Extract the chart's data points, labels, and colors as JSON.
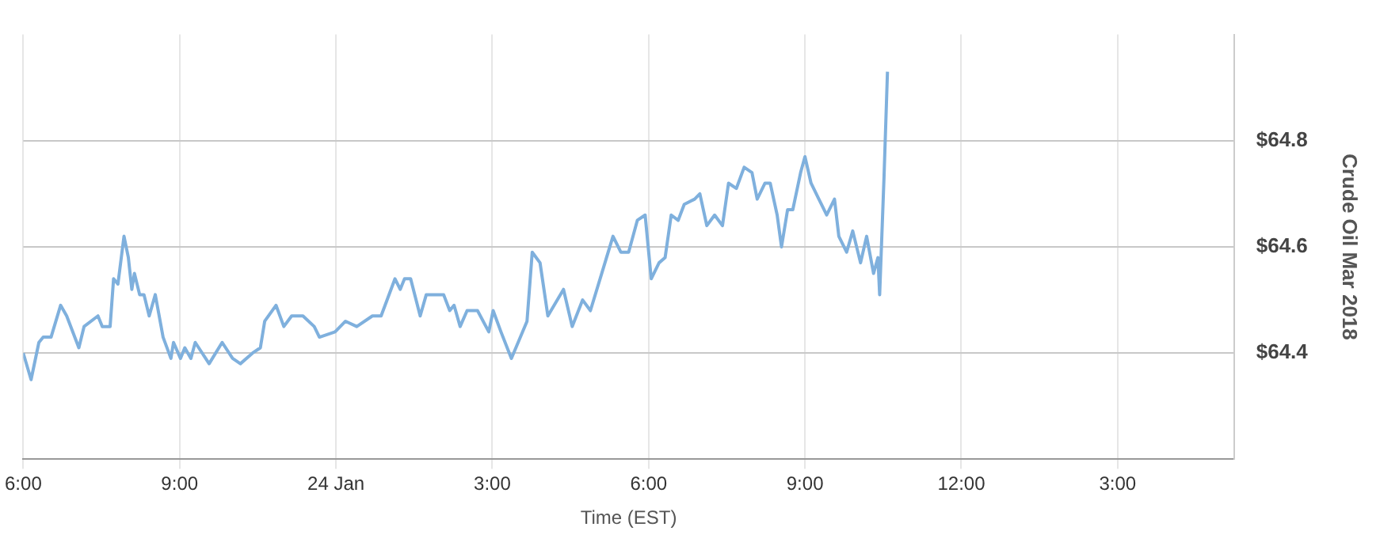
{
  "chart_data": {
    "type": "line",
    "xlabel": "Time (EST)",
    "ylabel": "Crude Oil Mar 2018",
    "xlim": [
      "2018-01-23T18:00",
      "2018-01-24T17:14"
    ],
    "xticks": [
      {
        "value": "2018-01-23T18:00",
        "label": "6:00"
      },
      {
        "value": "2018-01-23T21:00",
        "label": "9:00"
      },
      {
        "value": "2018-01-24T00:00",
        "label": "24 Jan"
      },
      {
        "value": "2018-01-24T03:00",
        "label": "3:00"
      },
      {
        "value": "2018-01-24T06:00",
        "label": "6:00"
      },
      {
        "value": "2018-01-24T09:00",
        "label": "9:00"
      },
      {
        "value": "2018-01-24T12:00",
        "label": "12:00"
      },
      {
        "value": "2018-01-24T15:00",
        "label": "3:00"
      }
    ],
    "ylim": [
      64.2,
      65.0
    ],
    "yticks": [
      {
        "value": 64.4,
        "label": "$64.4"
      },
      {
        "value": 64.6,
        "label": "$64.6"
      },
      {
        "value": 64.8,
        "label": "$64.8"
      }
    ],
    "grid": true,
    "marker": "none",
    "line_style": "solid",
    "series": [
      {
        "color": "#7fb0dd",
        "x": [
          "2018-01-23T18:00",
          "2018-01-23T18:09",
          "2018-01-23T18:18",
          "2018-01-23T18:23",
          "2018-01-23T18:32",
          "2018-01-23T18:43",
          "2018-01-23T18:50",
          "2018-01-23T19:04",
          "2018-01-23T19:10",
          "2018-01-23T19:26",
          "2018-01-23T19:31",
          "2018-01-23T19:40",
          "2018-01-23T19:44",
          "2018-01-23T19:49",
          "2018-01-23T19:56",
          "2018-01-23T20:01",
          "2018-01-23T20:05",
          "2018-01-23T20:08",
          "2018-01-23T20:14",
          "2018-01-23T20:19",
          "2018-01-23T20:25",
          "2018-01-23T20:32",
          "2018-01-23T20:41",
          "2018-01-23T20:50",
          "2018-01-23T20:53",
          "2018-01-23T21:01",
          "2018-01-23T21:06",
          "2018-01-23T21:13",
          "2018-01-23T21:18",
          "2018-01-23T21:34",
          "2018-01-23T21:49",
          "2018-01-23T22:01",
          "2018-01-23T22:10",
          "2018-01-23T22:24",
          "2018-01-23T22:33",
          "2018-01-23T22:38",
          "2018-01-23T22:51",
          "2018-01-23T23:00",
          "2018-01-23T23:09",
          "2018-01-23T23:22",
          "2018-01-23T23:35",
          "2018-01-23T23:41",
          "2018-01-23T23:59",
          "2018-01-24T00:11",
          "2018-01-24T00:24",
          "2018-01-24T00:42",
          "2018-01-24T00:52",
          "2018-01-24T01:08",
          "2018-01-24T01:14",
          "2018-01-24T01:19",
          "2018-01-24T01:26",
          "2018-01-24T01:37",
          "2018-01-24T01:44",
          "2018-01-24T02:04",
          "2018-01-24T02:11",
          "2018-01-24T02:16",
          "2018-01-24T02:23",
          "2018-01-24T02:31",
          "2018-01-24T02:43",
          "2018-01-24T02:56",
          "2018-01-24T03:01",
          "2018-01-24T03:10",
          "2018-01-24T03:22",
          "2018-01-24T03:40",
          "2018-01-24T03:46",
          "2018-01-24T03:55",
          "2018-01-24T04:04",
          "2018-01-24T04:22",
          "2018-01-24T04:32",
          "2018-01-24T04:44",
          "2018-01-24T04:53",
          "2018-01-24T05:06",
          "2018-01-24T05:19",
          "2018-01-24T05:28",
          "2018-01-24T05:37",
          "2018-01-24T05:47",
          "2018-01-24T05:56",
          "2018-01-24T06:03",
          "2018-01-24T06:12",
          "2018-01-24T06:19",
          "2018-01-24T06:26",
          "2018-01-24T06:34",
          "2018-01-24T06:41",
          "2018-01-24T06:53",
          "2018-01-24T06:59",
          "2018-01-24T07:07",
          "2018-01-24T07:16",
          "2018-01-24T07:25",
          "2018-01-24T07:32",
          "2018-01-24T07:41",
          "2018-01-24T07:50",
          "2018-01-24T07:59",
          "2018-01-24T08:05",
          "2018-01-24T08:14",
          "2018-01-24T08:20",
          "2018-01-24T08:28",
          "2018-01-24T08:33",
          "2018-01-24T08:40",
          "2018-01-24T08:46",
          "2018-01-24T08:55",
          "2018-01-24T09:00",
          "2018-01-24T09:07",
          "2018-01-24T09:16",
          "2018-01-24T09:25",
          "2018-01-24T09:34",
          "2018-01-24T09:39",
          "2018-01-24T09:48",
          "2018-01-24T09:55",
          "2018-01-24T10:04",
          "2018-01-24T10:11",
          "2018-01-24T10:19",
          "2018-01-24T10:24",
          "2018-01-24T10:26",
          "2018-01-24T10:31",
          "2018-01-24T10:35"
        ],
        "values": [
          64.4,
          64.35,
          64.42,
          64.43,
          64.43,
          64.49,
          64.47,
          64.41,
          64.45,
          64.47,
          64.45,
          64.45,
          64.54,
          64.53,
          64.62,
          64.58,
          64.52,
          64.55,
          64.51,
          64.51,
          64.47,
          64.51,
          64.43,
          64.39,
          64.42,
          64.39,
          64.41,
          64.39,
          64.42,
          64.38,
          64.42,
          64.39,
          64.38,
          64.4,
          64.41,
          64.46,
          64.49,
          64.45,
          64.47,
          64.47,
          64.45,
          64.43,
          64.44,
          64.46,
          64.45,
          64.47,
          64.47,
          64.54,
          64.52,
          64.54,
          64.54,
          64.47,
          64.51,
          64.51,
          64.48,
          64.49,
          64.45,
          64.48,
          64.48,
          64.44,
          64.48,
          64.44,
          64.39,
          64.46,
          64.59,
          64.57,
          64.47,
          64.52,
          64.45,
          64.5,
          64.48,
          64.55,
          64.62,
          64.59,
          64.59,
          64.65,
          64.66,
          64.54,
          64.57,
          64.58,
          64.66,
          64.65,
          64.68,
          64.69,
          64.7,
          64.64,
          64.66,
          64.64,
          64.72,
          64.71,
          64.75,
          64.74,
          64.69,
          64.72,
          64.72,
          64.66,
          64.6,
          64.67,
          64.67,
          64.74,
          64.77,
          64.72,
          64.69,
          64.66,
          64.69,
          64.62,
          64.59,
          64.63,
          64.57,
          64.62,
          64.55,
          64.58,
          64.51,
          64.73,
          64.93
        ]
      }
    ]
  }
}
